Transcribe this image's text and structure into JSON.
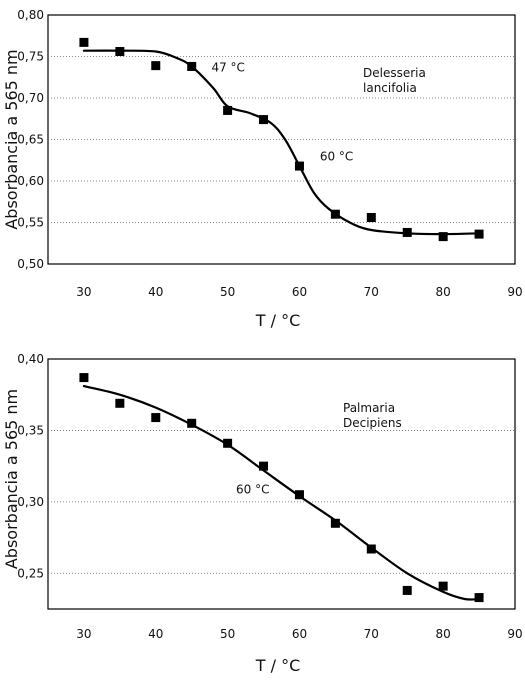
{
  "chart_data": [
    {
      "type": "scatter",
      "ylabel": "Absorbancia a 565 nm",
      "xlabel": "T / °C",
      "xlim": [
        25,
        90
      ],
      "ylim": [
        0.5,
        0.8
      ],
      "xticks": [
        "30",
        "40",
        "50",
        "60",
        "70",
        "80",
        "90"
      ],
      "yticks": [
        "0,80",
        "0,75",
        "0,70",
        "0,65",
        "0,60",
        "0,55",
        "0,50"
      ],
      "grid": "horizontal dotted",
      "series": [
        {
          "points": [
            {
              "x": 30,
              "y": 0.767
            },
            {
              "x": 35,
              "y": 0.756
            },
            {
              "x": 40,
              "y": 0.739
            },
            {
              "x": 45,
              "y": 0.738
            },
            {
              "x": 50,
              "y": 0.685
            },
            {
              "x": 55,
              "y": 0.674
            },
            {
              "x": 60,
              "y": 0.618
            },
            {
              "x": 65,
              "y": 0.56
            },
            {
              "x": 70,
              "y": 0.556
            },
            {
              "x": 75,
              "y": 0.538
            },
            {
              "x": 80,
              "y": 0.533
            },
            {
              "x": 85,
              "y": 0.536
            }
          ],
          "fit": [
            {
              "x": 30,
              "y": 0.757
            },
            {
              "x": 35,
              "y": 0.757
            },
            {
              "x": 40,
              "y": 0.756
            },
            {
              "x": 43,
              "y": 0.748
            },
            {
              "x": 45,
              "y": 0.738
            },
            {
              "x": 48,
              "y": 0.712
            },
            {
              "x": 50,
              "y": 0.69
            },
            {
              "x": 53,
              "y": 0.682
            },
            {
              "x": 56,
              "y": 0.67
            },
            {
              "x": 58,
              "y": 0.65
            },
            {
              "x": 60,
              "y": 0.618
            },
            {
              "x": 62,
              "y": 0.586
            },
            {
              "x": 64,
              "y": 0.567
            },
            {
              "x": 67,
              "y": 0.55
            },
            {
              "x": 70,
              "y": 0.541
            },
            {
              "x": 75,
              "y": 0.537
            },
            {
              "x": 80,
              "y": 0.536
            },
            {
              "x": 85,
              "y": 0.537
            }
          ]
        }
      ],
      "annotations": [
        {
          "text": "47 °C",
          "x": 46.5,
          "y": 0.737
        },
        {
          "text": "60 °C",
          "x": 62,
          "y": 0.625
        }
      ],
      "legend_text": [
        "Delesseria",
        "lancifolia"
      ]
    },
    {
      "type": "scatter",
      "ylabel": "Absorbancia a 565 nm",
      "xlabel": "T / °C",
      "xlim": [
        25,
        90
      ],
      "ylim": [
        0.225,
        0.4
      ],
      "xticks": [
        "30",
        "40",
        "50",
        "60",
        "70",
        "80",
        "90"
      ],
      "yticks": [
        "0,40",
        "0,35",
        "0,30",
        "0,25"
      ],
      "grid": "horizontal dotted",
      "series": [
        {
          "points": [
            {
              "x": 30,
              "y": 0.387
            },
            {
              "x": 35,
              "y": 0.369
            },
            {
              "x": 40,
              "y": 0.359
            },
            {
              "x": 45,
              "y": 0.355
            },
            {
              "x": 50,
              "y": 0.341
            },
            {
              "x": 55,
              "y": 0.325
            },
            {
              "x": 60,
              "y": 0.305
            },
            {
              "x": 65,
              "y": 0.285
            },
            {
              "x": 70,
              "y": 0.267
            },
            {
              "x": 75,
              "y": 0.238
            },
            {
              "x": 80,
              "y": 0.241
            },
            {
              "x": 85,
              "y": 0.233
            }
          ],
          "fit": [
            {
              "x": 30,
              "y": 0.381
            },
            {
              "x": 35,
              "y": 0.375
            },
            {
              "x": 40,
              "y": 0.366
            },
            {
              "x": 45,
              "y": 0.354
            },
            {
              "x": 50,
              "y": 0.34
            },
            {
              "x": 55,
              "y": 0.322
            },
            {
              "x": 60,
              "y": 0.304
            },
            {
              "x": 65,
              "y": 0.287
            },
            {
              "x": 70,
              "y": 0.268
            },
            {
              "x": 75,
              "y": 0.25
            },
            {
              "x": 80,
              "y": 0.237
            },
            {
              "x": 83,
              "y": 0.232
            },
            {
              "x": 85,
              "y": 0.232
            }
          ]
        }
      ],
      "annotations": [
        {
          "text": "60 °C",
          "x": 53.5,
          "y": 0.306
        }
      ],
      "legend_text": [
        "Palmaria",
        "Decipiens"
      ]
    }
  ]
}
